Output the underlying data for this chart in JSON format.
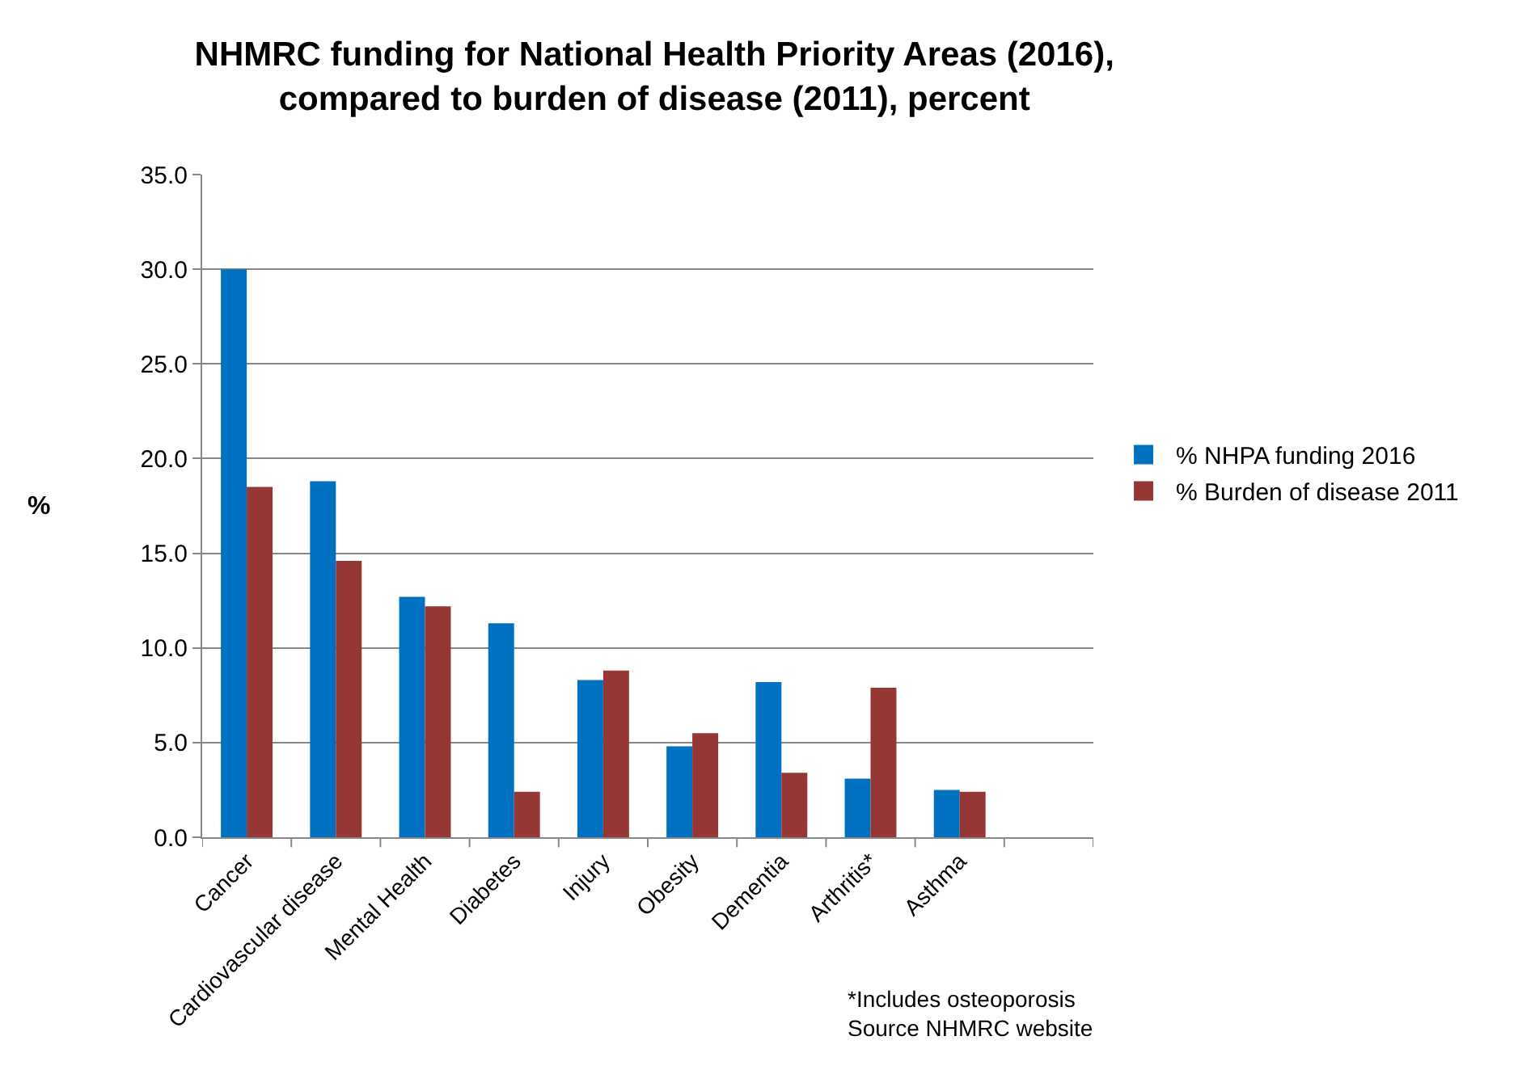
{
  "chart_data": {
    "type": "bar",
    "title": "NHMRC funding for National Health Priority Areas (2016),\ncompared to burden of disease (2011), percent",
    "ylabel": "%",
    "categories": [
      "Cancer",
      "Cardiovascular disease",
      "Mental Health",
      "Diabetes",
      "Injury",
      "Obesity",
      "Dementia",
      "Arthritis*",
      "Asthma",
      null
    ],
    "series": [
      {
        "name": "% NHPA funding 2016",
        "color": "#0070c0",
        "values": [
          30.0,
          18.8,
          12.7,
          11.3,
          8.3,
          4.8,
          8.2,
          3.1,
          2.5,
          null
        ]
      },
      {
        "name": "% Burden of disease 2011",
        "color": "#953735",
        "values": [
          18.5,
          14.6,
          12.2,
          2.4,
          8.8,
          5.5,
          3.4,
          7.9,
          2.4,
          null
        ]
      }
    ],
    "ylim": [
      0,
      35
    ],
    "yticks": [
      {
        "value": 0,
        "label": "0.0"
      },
      {
        "value": 5,
        "label": "5.0"
      },
      {
        "value": 10,
        "label": "10.0"
      },
      {
        "value": 15,
        "label": "15.0"
      },
      {
        "value": 20,
        "label": "20.0"
      },
      {
        "value": 25,
        "label": "25.0"
      },
      {
        "value": 30,
        "label": "30.0"
      },
      {
        "value": 35,
        "label": "35.0"
      }
    ],
    "grid": "y",
    "legend": "right",
    "annotations": [
      "*Includes osteoporosis\nSource NHMRC website"
    ]
  }
}
